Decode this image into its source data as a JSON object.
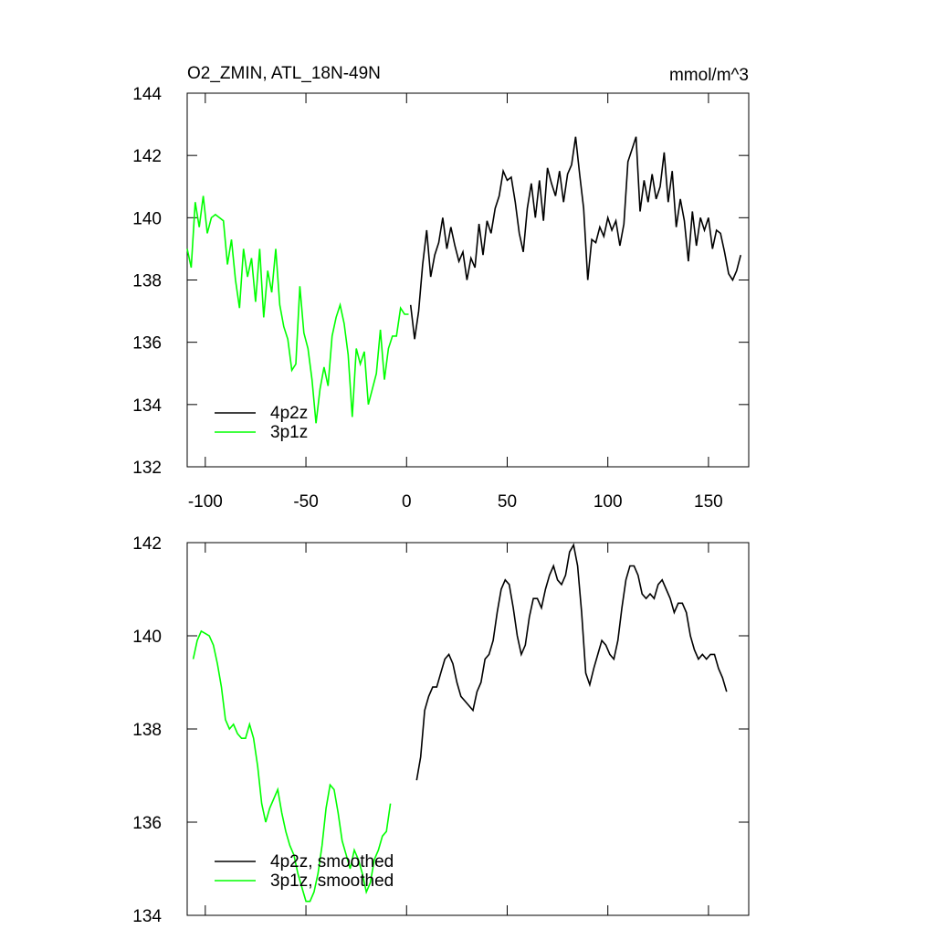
{
  "chart_data": [
    {
      "type": "line",
      "title": "O2_ZMIN, ATL_18N-49N",
      "subtitle": "mmol/m^3",
      "xlim": [
        -109,
        170
      ],
      "xticks": [
        -100,
        -50,
        0,
        50,
        100,
        150
      ],
      "ylim": [
        132,
        144
      ],
      "yticks": [
        132,
        134,
        136,
        138,
        140,
        142,
        144
      ],
      "legend": "lower left",
      "series": [
        {
          "name": "4p2z",
          "color": "#000000",
          "x": [
            2,
            4,
            6,
            8,
            10,
            12,
            14,
            16,
            18,
            20,
            22,
            24,
            26,
            28,
            30,
            32,
            34,
            36,
            38,
            40,
            42,
            44,
            46,
            48,
            50,
            52,
            54,
            56,
            58,
            60,
            62,
            64,
            66,
            68,
            70,
            72,
            74,
            76,
            78,
            80,
            82,
            84,
            86,
            88,
            90,
            92,
            94,
            96,
            98,
            100,
            102,
            104,
            106,
            108,
            110,
            112,
            114,
            116,
            118,
            120,
            122,
            124,
            126,
            128,
            130,
            132,
            134,
            136,
            138,
            140,
            142,
            144,
            146,
            148,
            150,
            152,
            154,
            156,
            158,
            160,
            162,
            164,
            166
          ],
          "values": [
            137.2,
            136.1,
            137.0,
            138.5,
            139.6,
            138.1,
            138.8,
            139.2,
            140.0,
            139.0,
            139.7,
            139.1,
            138.6,
            138.9,
            138.0,
            138.7,
            138.4,
            139.8,
            138.8,
            139.9,
            139.5,
            140.3,
            140.7,
            141.5,
            141.2,
            141.3,
            140.5,
            139.5,
            138.9,
            140.3,
            141.1,
            140.0,
            141.2,
            139.9,
            141.6,
            141.1,
            140.7,
            141.5,
            140.5,
            141.4,
            141.7,
            142.6,
            141.4,
            140.3,
            138.0,
            139.3,
            139.2,
            139.7,
            139.4,
            140.0,
            139.6,
            139.9,
            139.1,
            139.8,
            141.8,
            142.2,
            142.6,
            140.2,
            141.2,
            140.5,
            141.4,
            140.6,
            141.0,
            142.1,
            140.5,
            141.5,
            139.7,
            140.6,
            139.9,
            138.6,
            140.2,
            139.1,
            140.0,
            139.6,
            140.0,
            139.0,
            139.6,
            139.5,
            138.9,
            138.2,
            138.0,
            138.3,
            138.8
          ]
        },
        {
          "name": "3p1z",
          "color": "#00ff00",
          "x": [
            -109,
            -107,
            -105,
            -103,
            -101,
            -99,
            -97,
            -95,
            -93,
            -91,
            -89,
            -87,
            -85,
            -83,
            -81,
            -79,
            -77,
            -75,
            -73,
            -71,
            -69,
            -67,
            -65,
            -63,
            -61,
            -59,
            -57,
            -55,
            -53,
            -51,
            -49,
            -47,
            -45,
            -43,
            -41,
            -39,
            -37,
            -35,
            -33,
            -31,
            -29,
            -27,
            -25,
            -23,
            -21,
            -19,
            -17,
            -15,
            -13,
            -11,
            -9,
            -7,
            -5,
            -3,
            -1,
            1
          ],
          "values": [
            139.0,
            138.4,
            140.5,
            139.7,
            140.7,
            139.5,
            140.0,
            140.1,
            140.0,
            139.9,
            138.5,
            139.3,
            138.0,
            137.1,
            139.0,
            138.1,
            138.7,
            137.3,
            139.0,
            136.8,
            138.3,
            137.6,
            139.0,
            137.2,
            136.5,
            136.1,
            135.1,
            135.3,
            137.8,
            136.3,
            135.8,
            134.8,
            133.4,
            134.5,
            135.2,
            134.6,
            136.2,
            136.8,
            137.2,
            136.6,
            135.6,
            133.6,
            135.8,
            135.3,
            135.7,
            134.0,
            134.5,
            135.0,
            136.4,
            134.8,
            135.8,
            136.2,
            136.2,
            137.1,
            136.9,
            136.9
          ]
        }
      ]
    },
    {
      "type": "line",
      "xlim": [
        -109,
        170
      ],
      "xticks": [
        -100,
        -50,
        0,
        50,
        100,
        150
      ],
      "ylim": [
        134,
        142
      ],
      "yticks": [
        134,
        136,
        138,
        140,
        142
      ],
      "legend": "lower left",
      "series": [
        {
          "name": "4p2z, smoothed",
          "color": "#000000",
          "x": [
            5,
            7,
            9,
            11,
            13,
            15,
            17,
            19,
            21,
            23,
            25,
            27,
            29,
            31,
            33,
            35,
            37,
            39,
            41,
            43,
            45,
            47,
            49,
            51,
            53,
            55,
            57,
            59,
            61,
            63,
            65,
            67,
            69,
            71,
            73,
            75,
            77,
            79,
            81,
            83,
            85,
            87,
            89,
            91,
            93,
            95,
            97,
            99,
            101,
            103,
            105,
            107,
            109,
            111,
            113,
            115,
            117,
            119,
            121,
            123,
            125,
            127,
            129,
            131,
            133,
            135,
            137,
            139,
            141,
            143,
            145,
            147,
            149,
            151,
            153,
            155,
            157,
            159
          ],
          "values": [
            136.9,
            137.4,
            138.4,
            138.7,
            138.9,
            138.9,
            139.2,
            139.5,
            139.6,
            139.4,
            139.0,
            138.7,
            138.6,
            138.5,
            138.4,
            138.8,
            139.0,
            139.5,
            139.6,
            139.9,
            140.5,
            141.0,
            141.2,
            141.1,
            140.6,
            140.0,
            139.6,
            139.8,
            140.4,
            140.8,
            140.8,
            140.6,
            141.0,
            141.3,
            141.5,
            141.2,
            141.1,
            141.3,
            141.8,
            141.95,
            141.5,
            140.5,
            139.2,
            138.95,
            139.3,
            139.6,
            139.9,
            139.8,
            139.6,
            139.5,
            139.9,
            140.6,
            141.2,
            141.5,
            141.5,
            141.3,
            140.9,
            140.8,
            140.9,
            140.8,
            141.1,
            141.2,
            141.0,
            140.8,
            140.5,
            140.7,
            140.7,
            140.5,
            140.0,
            139.7,
            139.5,
            139.6,
            139.5,
            139.6,
            139.6,
            139.3,
            139.1,
            138.8
          ]
        },
        {
          "name": "3p1z, smoothed",
          "color": "#00ff00",
          "x": [
            -106,
            -104,
            -102,
            -100,
            -98,
            -96,
            -94,
            -92,
            -90,
            -88,
            -86,
            -84,
            -82,
            -80,
            -78,
            -76,
            -74,
            -72,
            -70,
            -68,
            -66,
            -64,
            -62,
            -60,
            -58,
            -56,
            -54,
            -52,
            -50,
            -48,
            -46,
            -44,
            -42,
            -40,
            -38,
            -36,
            -34,
            -32,
            -30,
            -28,
            -26,
            -24,
            -22,
            -20,
            -18,
            -16,
            -14,
            -12,
            -10,
            -8
          ],
          "values": [
            139.5,
            139.9,
            140.1,
            140.05,
            140.0,
            139.8,
            139.4,
            138.9,
            138.2,
            138.0,
            138.1,
            137.9,
            137.8,
            137.8,
            138.1,
            137.8,
            137.2,
            136.4,
            136.0,
            136.3,
            136.5,
            136.7,
            136.2,
            135.8,
            135.5,
            135.3,
            134.9,
            134.6,
            134.3,
            134.3,
            134.5,
            134.9,
            135.5,
            136.3,
            136.8,
            136.7,
            136.2,
            135.6,
            135.3,
            135.0,
            135.4,
            135.2,
            134.9,
            134.5,
            134.7,
            135.2,
            135.4,
            135.7,
            135.8,
            136.4
          ]
        }
      ]
    }
  ]
}
